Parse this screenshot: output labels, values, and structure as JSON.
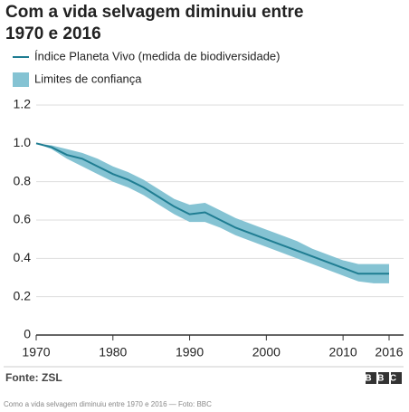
{
  "chart_data": {
    "type": "line",
    "title": "Com a vida selvagem diminuiu entre 1970 e 2016",
    "x": [
      1970,
      1972,
      1974,
      1976,
      1978,
      1980,
      1982,
      1984,
      1986,
      1988,
      1990,
      1992,
      1994,
      1996,
      1998,
      2000,
      2002,
      2004,
      2006,
      2008,
      2010,
      2012,
      2014,
      2016
    ],
    "series": [
      {
        "name": "Índice Planeta Vivo (medida de biodiversidade)",
        "color": "#1f7d92",
        "values": [
          1.0,
          0.98,
          0.94,
          0.92,
          0.88,
          0.84,
          0.81,
          0.77,
          0.72,
          0.67,
          0.63,
          0.64,
          0.6,
          0.56,
          0.53,
          0.5,
          0.47,
          0.44,
          0.41,
          0.38,
          0.35,
          0.32,
          0.32,
          0.32
        ]
      }
    ],
    "band": {
      "name": "Limites de confiança",
      "color": "#85c3d3",
      "upper": [
        1.0,
        0.99,
        0.97,
        0.95,
        0.92,
        0.88,
        0.85,
        0.81,
        0.76,
        0.71,
        0.68,
        0.69,
        0.65,
        0.61,
        0.58,
        0.55,
        0.52,
        0.49,
        0.45,
        0.42,
        0.39,
        0.37,
        0.37,
        0.37
      ],
      "lower": [
        1.0,
        0.97,
        0.92,
        0.88,
        0.84,
        0.8,
        0.77,
        0.73,
        0.68,
        0.63,
        0.59,
        0.59,
        0.56,
        0.52,
        0.49,
        0.46,
        0.43,
        0.4,
        0.37,
        0.34,
        0.31,
        0.28,
        0.27,
        0.27
      ]
    },
    "xlim": [
      1970,
      2016
    ],
    "xticks": [
      1970,
      1980,
      1990,
      2000,
      2010,
      2016
    ],
    "ylim": [
      0,
      1.2
    ],
    "yticks": [
      0,
      0.2,
      0.4,
      0.6,
      0.8,
      {
        "value": 1,
        "label": "1.0"
      },
      1.2
    ],
    "grid": true,
    "source": "Fonte: ZSL",
    "logo": "BBC",
    "caption": "Como a vida selvagem diminuiu entre 1970 e 2016 — Foto: BBC"
  }
}
